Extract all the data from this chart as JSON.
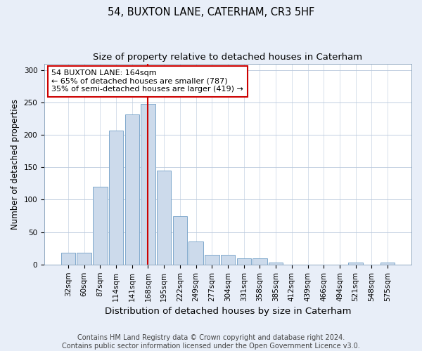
{
  "title": "54, BUXTON LANE, CATERHAM, CR3 5HF",
  "subtitle": "Size of property relative to detached houses in Caterham",
  "xlabel": "Distribution of detached houses by size in Caterham",
  "ylabel": "Number of detached properties",
  "categories": [
    "32sqm",
    "60sqm",
    "87sqm",
    "114sqm",
    "141sqm",
    "168sqm",
    "195sqm",
    "222sqm",
    "249sqm",
    "277sqm",
    "304sqm",
    "331sqm",
    "358sqm",
    "385sqm",
    "412sqm",
    "439sqm",
    "466sqm",
    "494sqm",
    "521sqm",
    "548sqm",
    "575sqm"
  ],
  "values": [
    18,
    18,
    120,
    207,
    232,
    248,
    145,
    75,
    35,
    15,
    15,
    10,
    10,
    3,
    0,
    0,
    0,
    0,
    3,
    0,
    3
  ],
  "bar_color": "#ccdaeb",
  "bar_edge_color": "#7fa8cc",
  "vline_x_index": 5,
  "vline_color": "#cc0000",
  "annotation_text": "54 BUXTON LANE: 164sqm\n← 65% of detached houses are smaller (787)\n35% of semi-detached houses are larger (419) →",
  "annotation_box_color": "#ffffff",
  "annotation_box_edge_color": "#cc0000",
  "ylim": [
    0,
    310
  ],
  "yticks": [
    0,
    50,
    100,
    150,
    200,
    250,
    300
  ],
  "footer_text": "Contains HM Land Registry data © Crown copyright and database right 2024.\nContains public sector information licensed under the Open Government Licence v3.0.",
  "background_color": "#e8eef8",
  "plot_background_color": "#ffffff",
  "title_fontsize": 10.5,
  "subtitle_fontsize": 9.5,
  "xlabel_fontsize": 9.5,
  "ylabel_fontsize": 8.5,
  "tick_fontsize": 7.5,
  "footer_fontsize": 7,
  "annot_fontsize": 8
}
